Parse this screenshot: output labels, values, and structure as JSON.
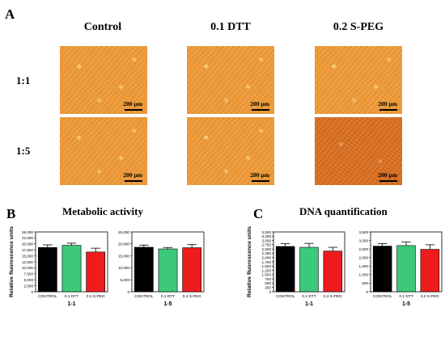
{
  "panel_a": {
    "letter": "A",
    "columns": [
      "Control",
      "0.1 DTT",
      "0.2 S-PEG"
    ],
    "rows": [
      "1:1",
      "1:5"
    ],
    "scale_label": "200 µm"
  },
  "panel_b": {
    "letter": "B",
    "title": "Metabolic activity"
  },
  "panel_c": {
    "letter": "C",
    "title": "DNA quantification"
  },
  "colors": {
    "control": "#000000",
    "dtt": "#3cc97a",
    "speg": "#ee1c1c"
  },
  "chart_data": [
    {
      "type": "bar",
      "panel": "B",
      "xlabel": "1-1",
      "ylabel": "Relative fluorescence units",
      "categories": [
        "CONTROL",
        "0.1 DTT",
        "0.2 S-PEG"
      ],
      "values": [
        18500,
        19400,
        16600
      ],
      "errors": [
        1100,
        900,
        1600
      ],
      "ylim": [
        0,
        25000
      ],
      "yticks": [
        "0",
        "2,500",
        "5,000",
        "7,500",
        "10,000",
        "12,500",
        "15,000",
        "17,500",
        "20,000",
        "22,500",
        "25,000"
      ]
    },
    {
      "type": "bar",
      "panel": "B",
      "xlabel": "1-5",
      "ylabel": "",
      "categories": [
        "CONTROL",
        "0.1 DTT",
        "0.2 S-PEG"
      ],
      "values": [
        18600,
        17900,
        18400
      ],
      "errors": [
        900,
        600,
        1300
      ],
      "ylim": [
        0,
        25000
      ],
      "yticks": [
        "0",
        "5,000",
        "10,000",
        "15,000",
        "20,000",
        "25,000"
      ]
    },
    {
      "type": "bar",
      "panel": "C",
      "xlabel": "1-1",
      "ylabel": "Relative fluorescence units",
      "categories": [
        "CONTROL",
        "0.1 DTT",
        "0.2 S-PEG"
      ],
      "values": [
        2650,
        2600,
        2380
      ],
      "errors": [
        170,
        230,
        220
      ],
      "ylim": [
        0,
        3500
      ],
      "yticks": [
        "0",
        "250",
        "500",
        "750",
        "1,000",
        "1,250",
        "1,500",
        "1,750",
        "2,000",
        "2,250",
        "2,500",
        "2,750",
        "3,000",
        "3,250",
        "3,500"
      ]
    },
    {
      "type": "bar",
      "panel": "C",
      "xlabel": "1-5",
      "ylabel": "",
      "categories": [
        "CONTROL",
        "0.1 DTT",
        "0.2 S-PEG"
      ],
      "values": [
        2670,
        2700,
        2480
      ],
      "errors": [
        150,
        220,
        270
      ],
      "ylim": [
        0,
        3500
      ],
      "yticks": [
        "0",
        "500",
        "1,000",
        "1,500",
        "2,000",
        "2,500",
        "3,000",
        "3,500"
      ]
    }
  ]
}
